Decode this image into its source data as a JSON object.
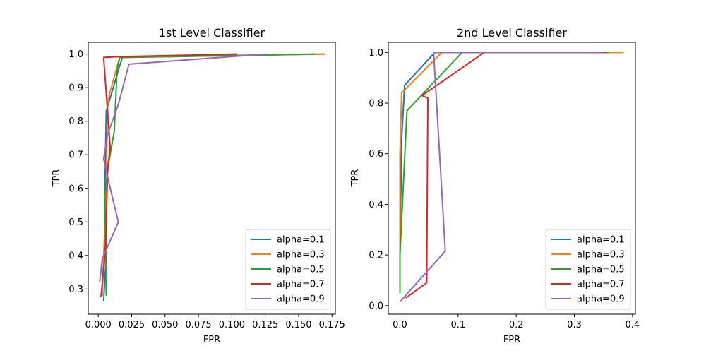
{
  "chart_data": [
    {
      "type": "line",
      "title": "1st Level Classifier",
      "xlabel": "FPR",
      "ylabel": "TPR",
      "xlim": [
        -0.0075,
        0.1775
      ],
      "ylim": [
        0.225,
        1.035
      ],
      "xticks": [
        0.0,
        0.025,
        0.05,
        0.075,
        0.1,
        0.125,
        0.15,
        0.175
      ],
      "xtick_labels": [
        "0.000",
        "0.025",
        "0.050",
        "0.075",
        "0.100",
        "0.125",
        "0.150",
        "0.175"
      ],
      "yticks": [
        0.3,
        0.4,
        0.5,
        0.6,
        0.7,
        0.8,
        0.9,
        1.0
      ],
      "ytick_labels": [
        "0.3",
        "0.4",
        "0.5",
        "0.6",
        "0.7",
        "0.8",
        "0.9",
        "1.0"
      ],
      "legend_position": "lower-right",
      "series": [
        {
          "name": "alpha=0.1",
          "color": "#1f77b4",
          "x": [
            0.169,
            0.018,
            0.006,
            0.005,
            0.006,
            0.004
          ],
          "y": [
            1.0,
            0.99,
            0.83,
            0.6,
            0.4,
            0.265
          ]
        },
        {
          "name": "alpha=0.3",
          "color": "#ff7f0e",
          "x": [
            0.17,
            0.016,
            0.007,
            0.006,
            0.004,
            0.003
          ],
          "y": [
            1.0,
            0.99,
            0.86,
            0.58,
            0.4,
            0.28
          ]
        },
        {
          "name": "alpha=0.5",
          "color": "#2ca02c",
          "x": [
            0.162,
            0.016,
            0.014,
            0.012,
            0.008,
            0.005,
            0.006
          ],
          "y": [
            1.0,
            0.99,
            0.95,
            0.77,
            0.68,
            0.58,
            0.28
          ]
        },
        {
          "name": "alpha=0.7",
          "color": "#d62728",
          "x": [
            0.104,
            0.015,
            0.004,
            0.009,
            0.007,
            0.006,
            0.005,
            0.002
          ],
          "y": [
            1.0,
            0.992,
            0.99,
            0.72,
            0.66,
            0.48,
            0.4,
            0.275
          ]
        },
        {
          "name": "alpha=0.9",
          "color": "#9467bd",
          "x": [
            0.126,
            0.023,
            0.015,
            0.007,
            0.004,
            0.009,
            0.015,
            0.003,
            0.001
          ],
          "y": [
            1.0,
            0.97,
            0.85,
            0.76,
            0.688,
            0.6,
            0.5,
            0.39,
            0.32
          ]
        }
      ]
    },
    {
      "type": "line",
      "title": "2nd Level Classifier",
      "xlabel": "FPR",
      "ylabel": "TPR",
      "xlim": [
        -0.02,
        0.405
      ],
      "ylim": [
        -0.034,
        1.04
      ],
      "xticks": [
        0.0,
        0.1,
        0.2,
        0.3,
        0.4
      ],
      "xtick_labels": [
        "0.0",
        "0.1",
        "0.2",
        "0.3",
        "0.4"
      ],
      "yticks": [
        0.0,
        0.2,
        0.4,
        0.6,
        0.8,
        1.0
      ],
      "ytick_labels": [
        "0.0",
        "0.2",
        "0.4",
        "0.6",
        "0.8",
        "1.0"
      ],
      "legend_position": "lower-right",
      "series": [
        {
          "name": "alpha=0.1",
          "color": "#1f77b4",
          "x": [
            0.38,
            0.06,
            0.008,
            0.003,
            0.0
          ],
          "y": [
            1.0,
            1.0,
            0.87,
            0.66,
            0.2
          ]
        },
        {
          "name": "alpha=0.3",
          "color": "#ff7f0e",
          "x": [
            0.385,
            0.072,
            0.003,
            0.0,
            0.0
          ],
          "y": [
            1.0,
            1.0,
            0.84,
            0.6,
            0.18
          ]
        },
        {
          "name": "alpha=0.5",
          "color": "#2ca02c",
          "x": [
            0.36,
            0.107,
            0.012,
            0.0,
            0.0
          ],
          "y": [
            1.0,
            1.0,
            0.77,
            0.2,
            0.05
          ]
        },
        {
          "name": "alpha=0.7",
          "color": "#d62728",
          "x": [
            0.355,
            0.145,
            0.038,
            0.048,
            0.046,
            0.01
          ],
          "y": [
            1.0,
            1.0,
            0.83,
            0.82,
            0.09,
            0.03
          ]
        },
        {
          "name": "alpha=0.9",
          "color": "#9467bd",
          "x": [
            0.35,
            0.058,
            0.078,
            0.0
          ],
          "y": [
            1.0,
            1.0,
            0.215,
            0.015
          ]
        }
      ]
    }
  ]
}
